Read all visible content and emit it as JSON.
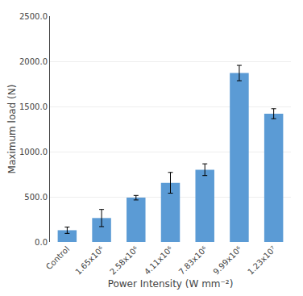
{
  "chart_data": {
    "type": "bar",
    "categories": [
      "Control",
      "1.65x10⁶",
      "2.58x10⁶",
      "4.11x10⁶",
      "7.83x10⁶",
      "9.99x10⁶",
      "1.23x10⁷"
    ],
    "values": [
      130,
      265,
      490,
      655,
      800,
      1870,
      1420
    ],
    "errors": [
      35,
      95,
      25,
      115,
      65,
      85,
      55
    ],
    "color": "#5b9bd5",
    "xlabel": "Power Intensity (W mm⁻²)",
    "ylabel": "Maximum load (N)",
    "ylim": [
      0,
      2500
    ],
    "yticks": [
      {
        "value": 0,
        "label": "0.0"
      },
      {
        "value": 500,
        "label": "500.0"
      },
      {
        "value": 1000,
        "label": "1000.0"
      },
      {
        "value": 1500,
        "label": "1500.0"
      },
      {
        "value": 2000,
        "label": "2000.0"
      },
      {
        "value": 2500,
        "label": "2500.0"
      }
    ],
    "grid": true
  }
}
